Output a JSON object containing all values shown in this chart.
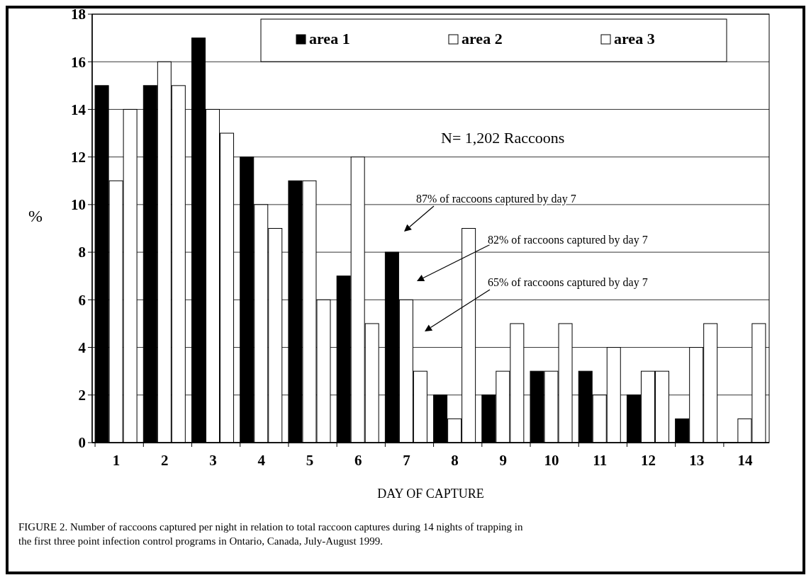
{
  "chart_data": {
    "type": "bar",
    "xlabel": "DAY OF CAPTURE",
    "ylabel": "%",
    "categories": [
      "1",
      "2",
      "3",
      "4",
      "5",
      "6",
      "7",
      "8",
      "9",
      "10",
      "11",
      "12",
      "13",
      "14"
    ],
    "series": [
      {
        "name": "area 1",
        "color": "#000000",
        "values": [
          15,
          15,
          17,
          12,
          11,
          7,
          8,
          2,
          2,
          3,
          3,
          2,
          1,
          0
        ]
      },
      {
        "name": "area 2",
        "color": "#ffffff",
        "values": [
          11,
          16,
          14,
          10,
          11,
          12,
          6,
          1,
          3,
          3,
          2,
          3,
          4,
          1
        ]
      },
      {
        "name": "area 3",
        "color": "#ffffff",
        "values": [
          14,
          15,
          13,
          9,
          6,
          5,
          3,
          9,
          5,
          5,
          4,
          3,
          5,
          5
        ]
      }
    ],
    "ylim": [
      0,
      18
    ],
    "yticks": [
      0,
      2,
      4,
      6,
      8,
      10,
      12,
      14,
      16,
      18
    ],
    "grid": "y",
    "legend": "top",
    "annotations": [
      "N= 1,202 Raccoons",
      "87% of raccoons captured by day 7",
      "82% of raccoons captured by day 7",
      "65% of raccoons captured by day 7",
      "FIGURE 2. Number of raccoons captured per night in relation to total raccoon captures during 14 nights of trapping in the first three point infection control programs in Ontario, Canada, July-August 1999."
    ]
  }
}
